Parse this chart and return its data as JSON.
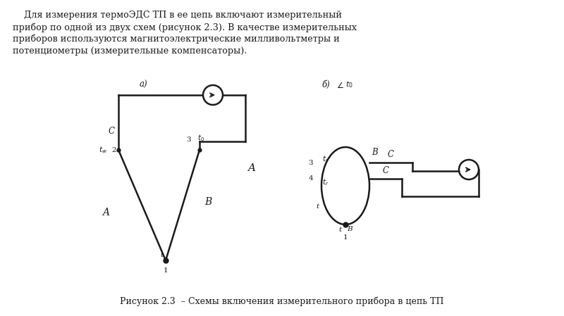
{
  "bg_color": "#ffffff",
  "line_color": "#1a1a1a",
  "fig_width": 8.0,
  "fig_height": 4.49,
  "para_lines": [
    "    Для измерения термоЭДС ТП в ее цепь включают измерительный",
    "прибор по одной из двух схем (рисунок 2.3). В качестве измерительных",
    "приборов используются магнитоэлектрические милливольтметры и",
    "потенциометры (измерительные компенсаторы)."
  ],
  "caption": "Рисунок 2.3  – Схемы включения измерительного прибора в цепь ТП",
  "diagram_a_label": "а)",
  "diagram_b_label": "б) ∠ t₀"
}
